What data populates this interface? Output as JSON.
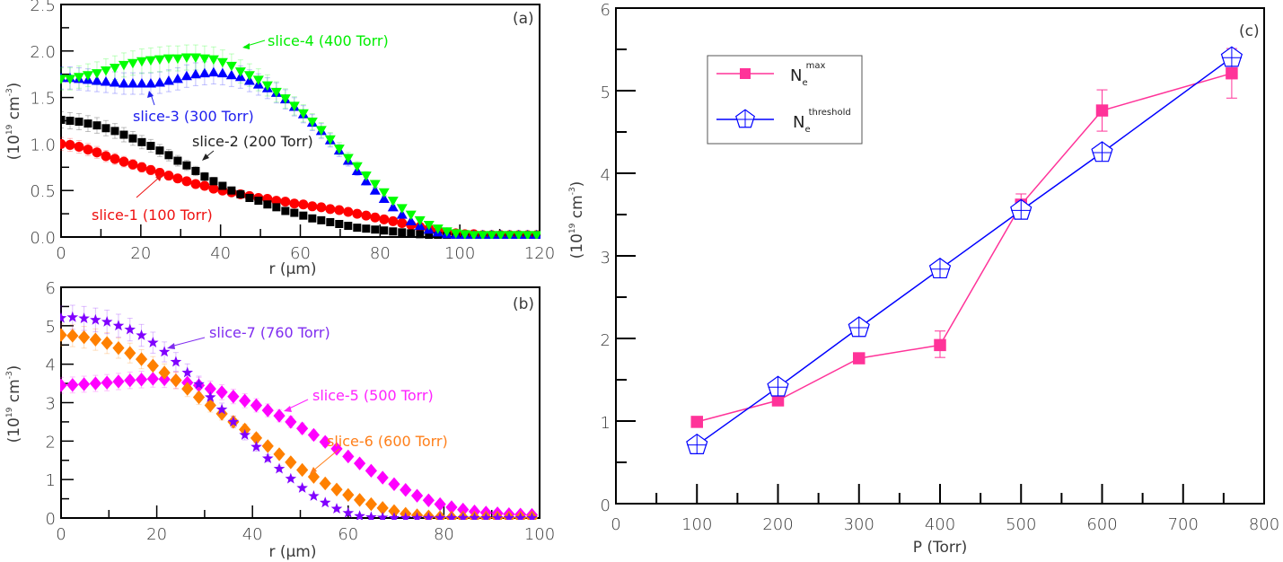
{
  "chart_data": [
    {
      "panel": "a",
      "type": "scatter",
      "tag": "(a)",
      "xlabel": "r (µm)",
      "ylabel": "(10^19 cm^-3)",
      "xlim": [
        0,
        120
      ],
      "ylim": [
        0,
        2.5
      ],
      "xticks": [
        "0",
        "20",
        "40",
        "60",
        "80",
        "100",
        "120"
      ],
      "xtick_values": [
        0,
        20,
        40,
        60,
        80,
        100,
        120
      ],
      "yticks": [
        "0.0",
        "0.5",
        "1.0",
        "1.5",
        "2.0",
        "2.5"
      ],
      "ytick_values": [
        0,
        0.5,
        1.0,
        1.5,
        2.0,
        2.5
      ],
      "grid": false,
      "x": [
        0,
        2.25,
        4.5,
        6.75,
        9,
        11.25,
        13.5,
        15.75,
        18,
        20.25,
        22.5,
        24.75,
        27,
        29.25,
        31.5,
        33.75,
        36,
        38.25,
        40.5,
        42.75,
        45,
        47.25,
        49.5,
        51.75,
        54,
        56.25,
        58.5,
        60.75,
        63,
        65.25,
        67.5,
        69.75,
        72,
        74.25,
        76.5,
        78.75,
        81,
        83.25,
        85.5,
        87.75,
        90,
        92.25,
        94.5,
        96.75,
        99,
        101.25,
        103.5,
        105.75,
        108,
        110.25,
        112.5,
        114.75,
        117,
        119.25
      ],
      "series": [
        {
          "name": "slice-1 (100 Torr)",
          "color": "#ff0000",
          "marker": "circle",
          "values": [
            1.0,
            0.99,
            0.97,
            0.94,
            0.91,
            0.87,
            0.84,
            0.81,
            0.78,
            0.75,
            0.72,
            0.69,
            0.66,
            0.63,
            0.6,
            0.57,
            0.55,
            0.52,
            0.5,
            0.48,
            0.46,
            0.44,
            0.42,
            0.41,
            0.39,
            0.38,
            0.36,
            0.35,
            0.33,
            0.32,
            0.3,
            0.29,
            0.27,
            0.25,
            0.23,
            0.21,
            0.19,
            0.17,
            0.15,
            0.13,
            0.11,
            0.09,
            0.07,
            0.05,
            0.04,
            0.03,
            0.03,
            0.02,
            0.02,
            0.02,
            0.02,
            0.02,
            0.02,
            0.02
          ]
        },
        {
          "name": "slice-2 (200 Torr)",
          "color": "#000000",
          "marker": "square",
          "values": [
            1.26,
            1.25,
            1.24,
            1.22,
            1.2,
            1.17,
            1.14,
            1.1,
            1.06,
            1.02,
            0.98,
            0.93,
            0.88,
            0.82,
            0.77,
            0.71,
            0.65,
            0.6,
            0.55,
            0.5,
            0.46,
            0.42,
            0.39,
            0.35,
            0.32,
            0.28,
            0.26,
            0.23,
            0.2,
            0.18,
            0.16,
            0.14,
            0.12,
            0.1,
            0.09,
            0.08,
            0.07,
            0.06,
            0.05,
            0.04,
            0.03,
            0.02,
            0.01,
            0.01,
            0.0,
            0.0,
            0.0,
            0.0,
            0.0,
            0.0,
            0.0,
            0.0,
            0.0,
            0.0
          ]
        },
        {
          "name": "slice-3 (300 Torr)",
          "color": "#0000ff",
          "marker": "triangle-up",
          "values": [
            1.71,
            1.71,
            1.7,
            1.69,
            1.68,
            1.67,
            1.66,
            1.65,
            1.65,
            1.65,
            1.65,
            1.66,
            1.68,
            1.7,
            1.73,
            1.75,
            1.76,
            1.77,
            1.76,
            1.74,
            1.72,
            1.68,
            1.64,
            1.6,
            1.55,
            1.48,
            1.4,
            1.32,
            1.23,
            1.14,
            1.04,
            0.93,
            0.82,
            0.71,
            0.6,
            0.5,
            0.41,
            0.32,
            0.24,
            0.17,
            0.12,
            0.08,
            0.05,
            0.03,
            0.02,
            0.02,
            0.02,
            0.02,
            0.02,
            0.02,
            0.02,
            0.02,
            0.02,
            0.02
          ]
        },
        {
          "name": "slice-4 (400 Torr)",
          "color": "#00ff00",
          "marker": "triangle-down",
          "values": [
            1.7,
            1.7,
            1.72,
            1.74,
            1.76,
            1.79,
            1.82,
            1.85,
            1.87,
            1.89,
            1.9,
            1.91,
            1.92,
            1.92,
            1.93,
            1.93,
            1.92,
            1.91,
            1.88,
            1.84,
            1.78,
            1.74,
            1.69,
            1.63,
            1.56,
            1.49,
            1.41,
            1.33,
            1.24,
            1.15,
            1.05,
            0.95,
            0.85,
            0.76,
            0.66,
            0.57,
            0.48,
            0.39,
            0.31,
            0.24,
            0.18,
            0.13,
            0.09,
            0.06,
            0.04,
            0.03,
            0.02,
            0.02,
            0.02,
            0.02,
            0.02,
            0.02,
            0.02,
            0.02
          ]
        }
      ],
      "annotations": [
        {
          "text": "slice-4 (400 Torr)",
          "color": "#00ee00"
        },
        {
          "text": "slice-3 (300 Torr)",
          "color": "#2020ee"
        },
        {
          "text": "slice-2 (200 Torr)",
          "color": "#222222"
        },
        {
          "text": "slice-1 (100 Torr)",
          "color": "#ee1111"
        }
      ]
    },
    {
      "panel": "b",
      "type": "scatter",
      "tag": "(b)",
      "xlabel": "r (µm)",
      "ylabel": "(10^19 cm^-3)",
      "xlim": [
        0,
        100
      ],
      "ylim": [
        0,
        6
      ],
      "xticks": [
        "0",
        "20",
        "40",
        "60",
        "80",
        "100"
      ],
      "xtick_values": [
        0,
        20,
        40,
        60,
        80,
        100
      ],
      "yticks": [
        "0",
        "1",
        "2",
        "3",
        "4",
        "5",
        "6"
      ],
      "ytick_values": [
        0,
        1,
        2,
        3,
        4,
        5,
        6
      ],
      "grid": false,
      "x": [
        0,
        2.4,
        4.8,
        7.2,
        9.6,
        12,
        14.4,
        16.8,
        19.2,
        21.6,
        24,
        26.4,
        28.8,
        31.2,
        33.6,
        36,
        38.4,
        40.8,
        43.2,
        45.6,
        48,
        50.4,
        52.8,
        55.2,
        57.6,
        60,
        62.4,
        64.8,
        67.2,
        69.6,
        72,
        74.4,
        76.8,
        79.2,
        81.6,
        84,
        86.4,
        88.8,
        91.2,
        93.6,
        96,
        98.4
      ],
      "series": [
        {
          "name": "slice-5 (500 Torr)",
          "color": "#ff00ff",
          "marker": "diamond",
          "values": [
            3.45,
            3.46,
            3.48,
            3.5,
            3.52,
            3.55,
            3.58,
            3.6,
            3.62,
            3.61,
            3.58,
            3.52,
            3.45,
            3.36,
            3.27,
            3.16,
            3.05,
            2.93,
            2.8,
            2.66,
            2.5,
            2.33,
            2.16,
            1.98,
            1.8,
            1.6,
            1.42,
            1.23,
            1.05,
            0.88,
            0.73,
            0.58,
            0.46,
            0.36,
            0.28,
            0.22,
            0.17,
            0.14,
            0.12,
            0.1,
            0.09,
            0.08
          ]
        },
        {
          "name": "slice-6 (600 Torr)",
          "color": "#ff8000",
          "marker": "diamond",
          "values": [
            4.76,
            4.74,
            4.7,
            4.64,
            4.55,
            4.42,
            4.29,
            4.13,
            3.96,
            3.78,
            3.58,
            3.36,
            3.14,
            2.93,
            2.71,
            2.5,
            2.3,
            2.08,
            1.87,
            1.66,
            1.45,
            1.25,
            1.07,
            0.9,
            0.74,
            0.6,
            0.47,
            0.36,
            0.26,
            0.18,
            0.11,
            0.07,
            0.04,
            0.02,
            0.01,
            0.01,
            0.01,
            0.01,
            0.01,
            0.01,
            0.01,
            0.01
          ]
        },
        {
          "name": "slice-7 (760 Torr)",
          "color": "#8000ff",
          "marker": "star",
          "values": [
            5.2,
            5.22,
            5.19,
            5.15,
            5.1,
            5.0,
            4.9,
            4.75,
            4.56,
            4.32,
            4.06,
            3.78,
            3.48,
            3.14,
            2.82,
            2.5,
            2.16,
            1.85,
            1.55,
            1.28,
            1.02,
            0.78,
            0.57,
            0.4,
            0.24,
            0.13,
            0.05,
            0.02,
            0.01,
            0.0,
            0.0,
            0.0,
            0.0,
            0.0,
            0.0,
            0.0,
            0.0,
            0.0,
            0.0,
            0.0,
            0.0,
            0.0
          ]
        }
      ],
      "annotations": [
        {
          "text": "slice-7 (760 Torr)",
          "color": "#7f2cf0"
        },
        {
          "text": "slice-5 (500 Torr)",
          "color": "#ff22ff"
        },
        {
          "text": "slice-6 (600 Torr)",
          "color": "#ff7f1a"
        }
      ]
    },
    {
      "panel": "c",
      "type": "line",
      "tag": "(c)",
      "xlabel": "P (Torr)",
      "ylabel": "(10^19 cm^-3)",
      "xlim": [
        0,
        800
      ],
      "ylim": [
        0,
        6
      ],
      "xticks": [
        "0",
        "100",
        "200",
        "300",
        "400",
        "500",
        "600",
        "700",
        "800"
      ],
      "xtick_values": [
        0,
        100,
        200,
        300,
        400,
        500,
        600,
        700,
        800
      ],
      "yticks": [
        "0",
        "1",
        "2",
        "3",
        "4",
        "5",
        "6"
      ],
      "ytick_values": [
        0,
        1,
        2,
        3,
        4,
        5,
        6
      ],
      "grid": false,
      "legend_position": "top-left",
      "x": [
        100,
        200,
        300,
        400,
        500,
        600,
        760
      ],
      "series": [
        {
          "name": "N_e^max",
          "label_main": "N",
          "label_sub": "e",
          "label_sup": "max",
          "color": "#ff3399",
          "marker": "square",
          "values": [
            0.99,
            1.25,
            1.76,
            1.92,
            3.62,
            4.76,
            5.21
          ],
          "err_low": [
            0.99,
            1.25,
            1.76,
            1.77,
            3.5,
            4.51,
            4.91
          ],
          "err_high": [
            0.99,
            1.25,
            1.76,
            2.09,
            3.75,
            5.01,
            5.51
          ]
        },
        {
          "name": "N_e^threshold",
          "label_main": "N",
          "label_sub": "e",
          "label_sup": "threshold",
          "color": "#0000ff",
          "marker": "pentagon",
          "values": [
            0.71,
            1.41,
            2.13,
            2.84,
            3.55,
            4.25,
            5.4
          ]
        }
      ]
    }
  ]
}
